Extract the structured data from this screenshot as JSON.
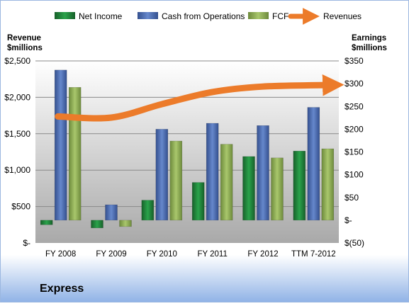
{
  "chart_data": {
    "type": "bar",
    "title": "Express",
    "categories": [
      "FY 2008",
      "FY 2009",
      "FY 2010",
      "FY 2011",
      "FY 2012",
      "TTM 7-2012"
    ],
    "left_axis": {
      "label_line1": "Revenue",
      "label_line2": "$millions",
      "ticks": [
        "$2,500",
        "$2,000",
        "$1,500",
        "$1,000",
        "$500",
        "$-"
      ],
      "range": [
        0,
        2500
      ]
    },
    "right_axis": {
      "label_line1": "Earnings",
      "label_line2": "$millions",
      "ticks": [
        "$350",
        "$300",
        "$250",
        "$200",
        "$150",
        "$100",
        "$50",
        "$-",
        "$(50)"
      ],
      "range": [
        -50,
        350
      ]
    },
    "series": [
      {
        "name": "Net Income",
        "axis": "right",
        "color": "#1f8a3c",
        "values": [
          -10,
          -17,
          44,
          83,
          140,
          152
        ]
      },
      {
        "name": "Cash from Operations",
        "axis": "right",
        "color": "#4f6fb4",
        "values": [
          330,
          34,
          200,
          213,
          208,
          248
        ]
      },
      {
        "name": "FCF",
        "axis": "right",
        "color": "#8fb055",
        "values": [
          292,
          -14,
          174,
          167,
          137,
          157
        ]
      },
      {
        "name": "Revenues",
        "axis": "left",
        "color": "#ec7b2a",
        "values": [
          1737,
          1722,
          1906,
          2073,
          2148,
          2170
        ]
      }
    ],
    "legend_position": "top",
    "grid": true
  }
}
